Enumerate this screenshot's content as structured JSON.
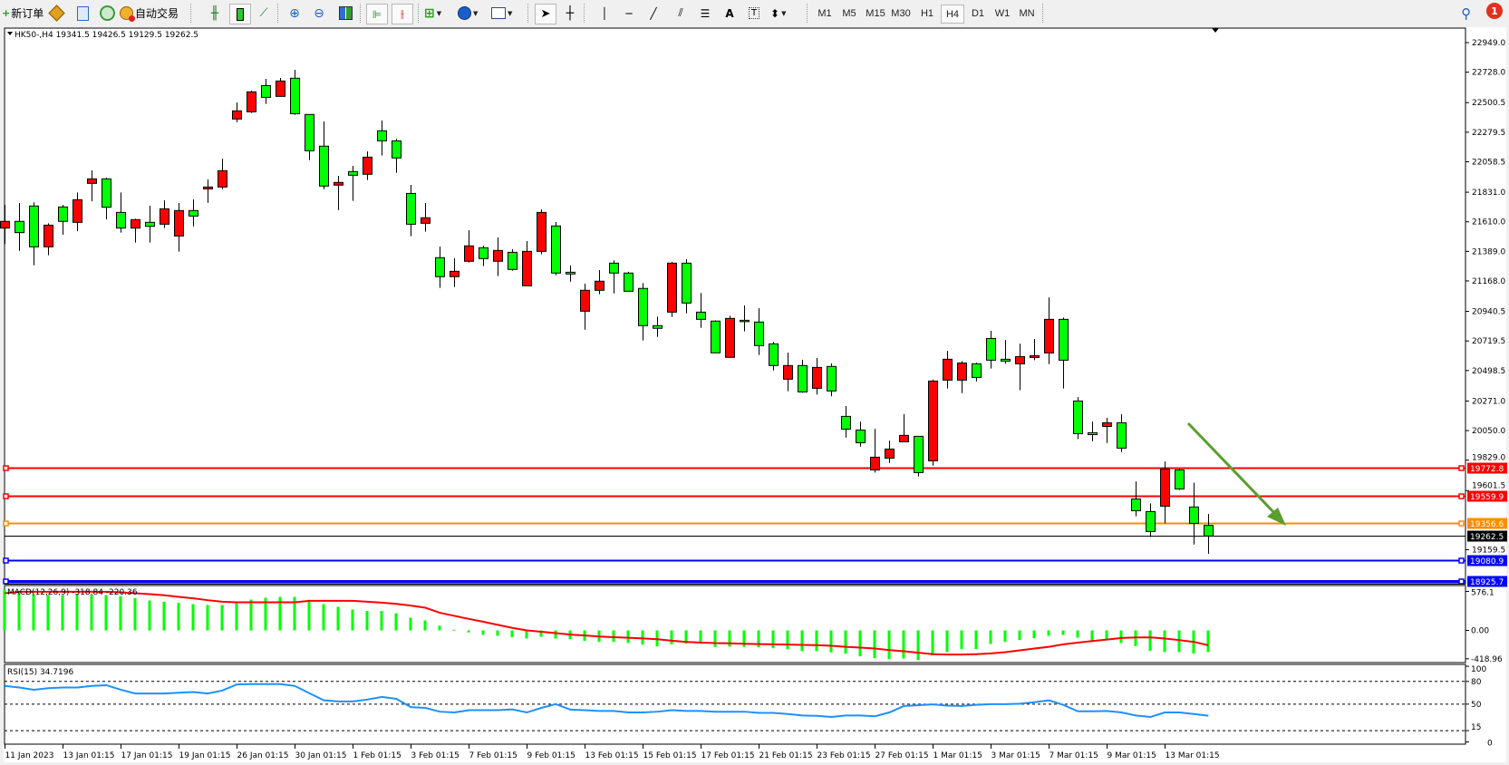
{
  "toolbar": {
    "new_order": "新订单",
    "auto_trading": "自动交易",
    "timeframes": [
      "M1",
      "M5",
      "M15",
      "M30",
      "H1",
      "H4",
      "D1",
      "W1",
      "MN"
    ],
    "active_timeframe": "H4",
    "notification_count": "1"
  },
  "chart": {
    "symbol_info": "HK50-,H4  19341.5 19426.5 19129.5 19262.5"
  },
  "chart_data": {
    "type": "candlestick",
    "symbol": "HK50-",
    "timeframe": "H4",
    "bull_color": "#ff0000",
    "bear_color": "#00ff00",
    "candles_ohlc": [
      [
        21563,
        21737,
        21445,
        21613
      ],
      [
        21613,
        21750,
        21393,
        21529
      ],
      [
        21728,
        21755,
        21285,
        21423
      ],
      [
        21423,
        21599,
        21360,
        21585
      ],
      [
        21721,
        21737,
        21513,
        21613
      ],
      [
        21606,
        21829,
        21540,
        21775
      ],
      [
        21897,
        21994,
        21764,
        21931
      ],
      [
        21931,
        21940,
        21628,
        21719
      ],
      [
        21680,
        21829,
        21529,
        21563
      ],
      [
        21563,
        21633,
        21455,
        21626
      ],
      [
        21606,
        21730,
        21455,
        21576
      ],
      [
        21592,
        21771,
        21563,
        21707
      ],
      [
        21504,
        21750,
        21387,
        21694
      ],
      [
        21694,
        21777,
        21576,
        21653
      ],
      [
        21856,
        21926,
        21752,
        21870
      ],
      [
        21870,
        22082,
        21854,
        21992
      ],
      [
        22378,
        22502,
        22355,
        22439
      ],
      [
        22432,
        22590,
        22423,
        22581
      ],
      [
        22628,
        22678,
        22491,
        22540
      ],
      [
        22547,
        22685,
        22547,
        22662
      ],
      [
        22683,
        22746,
        22409,
        22418
      ],
      [
        22412,
        22412,
        22071,
        22141
      ],
      [
        22175,
        22360,
        21854,
        21877
      ],
      [
        21884,
        21953,
        21698,
        21904
      ],
      [
        21985,
        22028,
        21766,
        21958
      ],
      [
        21965,
        22136,
        21922,
        22093
      ],
      [
        22290,
        22367,
        22105,
        22215
      ],
      [
        22215,
        22229,
        21976,
        22087
      ],
      [
        21822,
        21886,
        21502,
        21592
      ],
      [
        21599,
        21750,
        21536,
        21640
      ],
      [
        21342,
        21425,
        21116,
        21200
      ],
      [
        21200,
        21337,
        21123,
        21240
      ],
      [
        21315,
        21547,
        21306,
        21430
      ],
      [
        21416,
        21432,
        21279,
        21335
      ],
      [
        21315,
        21493,
        21204,
        21396
      ],
      [
        21382,
        21405,
        21245,
        21254
      ],
      [
        21132,
        21466,
        21132,
        21389
      ],
      [
        21389,
        21703,
        21367,
        21680
      ],
      [
        21579,
        21608,
        21211,
        21227
      ],
      [
        21233,
        21283,
        21163,
        21220
      ],
      [
        20942,
        21148,
        20804,
        21098
      ],
      [
        21098,
        21249,
        21069,
        21166
      ],
      [
        21301,
        21321,
        21075,
        21227
      ],
      [
        21227,
        21236,
        21091,
        21091
      ],
      [
        21112,
        21152,
        20723,
        20834
      ],
      [
        20834,
        20902,
        20750,
        20814
      ],
      [
        20935,
        21310,
        20899,
        21301
      ],
      [
        21301,
        21330,
        20926,
        21003
      ],
      [
        20935,
        21078,
        20818,
        20881
      ],
      [
        20868,
        20874,
        20631,
        20631
      ],
      [
        20597,
        20908,
        20597,
        20888
      ],
      [
        20874,
        20985,
        20791,
        20872
      ],
      [
        20861,
        20965,
        20615,
        20685
      ],
      [
        20698,
        20712,
        20500,
        20536
      ],
      [
        20434,
        20633,
        20344,
        20536
      ],
      [
        20536,
        20579,
        20333,
        20339
      ],
      [
        20366,
        20592,
        20319,
        20522
      ],
      [
        20529,
        20552,
        20306,
        20346
      ],
      [
        20156,
        20233,
        19998,
        20061
      ],
      [
        20054,
        20117,
        19930,
        19959
      ],
      [
        19756,
        20063,
        19736,
        19851
      ],
      [
        19844,
        19975,
        19808,
        19912
      ],
      [
        19966,
        20172,
        19966,
        20014
      ],
      [
        20007,
        20007,
        19707,
        19736
      ],
      [
        19824,
        20431,
        19788,
        20420
      ],
      [
        20427,
        20646,
        20364,
        20583
      ],
      [
        20427,
        20569,
        20330,
        20555
      ],
      [
        20549,
        20558,
        20418,
        20447
      ],
      [
        20738,
        20795,
        20513,
        20576
      ],
      [
        20583,
        20727,
        20549,
        20569
      ],
      [
        20549,
        20700,
        20352,
        20603
      ],
      [
        20596,
        20734,
        20576,
        20610
      ],
      [
        20630,
        21045,
        20546,
        20881
      ],
      [
        20881,
        20894,
        20364,
        20576
      ],
      [
        20271,
        20300,
        19987,
        20027
      ],
      [
        20034,
        20117,
        19971,
        20020
      ],
      [
        20081,
        20145,
        19957,
        20108
      ],
      [
        20108,
        20172,
        19889,
        19919
      ],
      [
        19539,
        19670,
        19409,
        19451
      ],
      [
        19445,
        19506,
        19255,
        19296
      ],
      [
        19485,
        19819,
        19357,
        19763
      ],
      [
        19756,
        19763,
        19607,
        19614
      ],
      [
        19479,
        19661,
        19199,
        19357
      ],
      [
        19341.5,
        19426.5,
        19129.5,
        19262.5
      ]
    ],
    "price_ticks": [
      "22949.0",
      "22728.0",
      "22500.5",
      "22279.5",
      "22058.5",
      "21831.0",
      "21610.0",
      "21389.0",
      "21168.0",
      "20940.5",
      "20719.5",
      "20498.5",
      "20271.0",
      "20050.0",
      "19829.0",
      "19601.5",
      "19159.5"
    ],
    "horizontal_lines": [
      {
        "price": 19772.8,
        "label": "19772.8",
        "color": "#ff0000"
      },
      {
        "price": 19559.9,
        "label": "19559.9",
        "color": "#ff0000"
      },
      {
        "price": 19356.6,
        "label": "19356.6",
        "color": "#ff8c00"
      },
      {
        "price": 19262.5,
        "label": "19262.5",
        "color": "#000000"
      },
      {
        "price": 19080.9,
        "label": "19080.9",
        "color": "#0000ff"
      },
      {
        "price": 18925.7,
        "label": "18925.7",
        "color": "#0000ff"
      }
    ],
    "arrow_color": "#5a9e2f",
    "time_labels": [
      "11 Jan 2023",
      "13 Jan 01:15",
      "17 Jan 01:15",
      "19 Jan 01:15",
      "26 Jan 01:15",
      "30 Jan 01:15",
      "1 Feb 01:15",
      "3 Feb 01:15",
      "7 Feb 01:15",
      "9 Feb 01:15",
      "13 Feb 01:15",
      "15 Feb 01:15",
      "17 Feb 01:15",
      "21 Feb 01:15",
      "23 Feb 01:15",
      "27 Feb 01:15",
      "1 Mar 01:15",
      "3 Mar 01:15",
      "7 Mar 01:15",
      "9 Mar 01:15",
      "13 Mar 01:15"
    ],
    "macd": {
      "label": "MACD(12,26,9) -318.84 -220.36",
      "ticks": [
        "576.1",
        "0.00",
        "-418.96"
      ],
      "histogram_color": "#00ff00",
      "signal_color": "#ff0000",
      "histogram": [
        602,
        549,
        536,
        522,
        522,
        531,
        531,
        522,
        504,
        478,
        442,
        424,
        406,
        388,
        375,
        375,
        420,
        455,
        482,
        495,
        495,
        451,
        388,
        348,
        308,
        286,
        286,
        254,
        187,
        147,
        70,
        10,
        -30,
        -67,
        -80,
        -100,
        -120,
        -95,
        -120,
        -130,
        -155,
        -170,
        -170,
        -187,
        -210,
        -235,
        -205,
        -195,
        -195,
        -245,
        -240,
        -243,
        -250,
        -263,
        -280,
        -307,
        -307,
        -325,
        -343,
        -383,
        -410,
        -424,
        -415,
        -437,
        -370,
        -320,
        -276,
        -276,
        -200,
        -170,
        -143,
        -116,
        -80,
        -67,
        -107,
        -147,
        -147,
        -187,
        -232,
        -303,
        -320,
        -320,
        -343,
        -319
      ],
      "signal": [
        549,
        571,
        571,
        571,
        571,
        571,
        571,
        571,
        562,
        549,
        536,
        518,
        495,
        473,
        446,
        424,
        415,
        415,
        415,
        415,
        415,
        437,
        437,
        437,
        437,
        424,
        410,
        392,
        366,
        335,
        260,
        215,
        170,
        127,
        82,
        37,
        0,
        -20,
        -40,
        -62,
        -76,
        -90,
        -100,
        -108,
        -118,
        -130,
        -152,
        -170,
        -180,
        -188,
        -190,
        -197,
        -202,
        -205,
        -210,
        -215,
        -218,
        -228,
        -242,
        -255,
        -268,
        -291,
        -308,
        -330,
        -352,
        -357,
        -357,
        -352,
        -339,
        -321,
        -294,
        -268,
        -242,
        -206,
        -180,
        -157,
        -135,
        -112,
        -103,
        -103,
        -121,
        -143,
        -170,
        -220
      ]
    },
    "rsi": {
      "label": "RSI(15) 34.7196",
      "ticks": [
        "100",
        "80",
        "50",
        "15",
        "0"
      ],
      "levels": [
        80,
        50,
        15
      ],
      "color": "#1e90ff",
      "values": [
        74,
        72,
        69,
        71,
        72,
        72,
        74,
        75,
        69,
        64,
        64,
        64,
        65,
        66,
        64,
        68,
        76,
        76.5,
        76.5,
        76.5,
        74,
        64.5,
        55,
        53.5,
        53.5,
        56,
        59.5,
        57,
        46,
        45,
        40,
        39,
        42,
        42,
        42,
        43,
        39,
        45,
        50,
        42.7,
        42,
        41,
        41,
        39,
        39,
        40,
        42,
        41,
        41,
        40,
        40,
        40,
        38.5,
        38.5,
        37,
        35,
        34.5,
        33,
        35,
        35,
        34,
        39,
        47.5,
        48.5,
        49.6,
        48,
        47.5,
        49,
        50,
        50,
        50.5,
        52.5,
        55,
        49,
        40.5,
        40.5,
        41,
        39,
        35,
        33,
        39,
        39,
        37,
        34.72
      ]
    }
  }
}
